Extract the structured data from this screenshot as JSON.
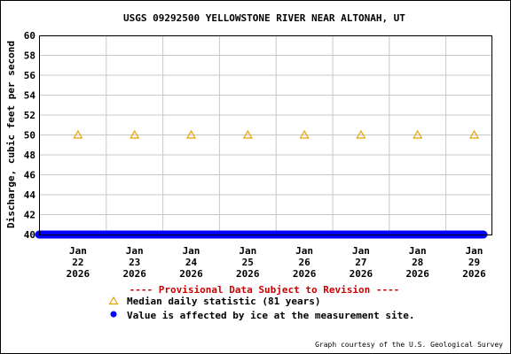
{
  "chart_data": {
    "type": "scatter",
    "title": "USGS 09292500 YELLOWSTONE RIVER NEAR ALTONAH, UT",
    "xlabel": "",
    "ylabel": "Discharge, cubic feet per second",
    "ylim": [
      40,
      60
    ],
    "y_ticks": [
      "40",
      "42",
      "44",
      "46",
      "48",
      "50",
      "52",
      "54",
      "56",
      "58",
      "60"
    ],
    "x_ticks": [
      {
        "month": "Jan",
        "day": "22",
        "year": "2026"
      },
      {
        "month": "Jan",
        "day": "23",
        "year": "2026"
      },
      {
        "month": "Jan",
        "day": "24",
        "year": "2026"
      },
      {
        "month": "Jan",
        "day": "25",
        "year": "2026"
      },
      {
        "month": "Jan",
        "day": "26",
        "year": "2026"
      },
      {
        "month": "Jan",
        "day": "27",
        "year": "2026"
      },
      {
        "month": "Jan",
        "day": "28",
        "year": "2026"
      },
      {
        "month": "Jan",
        "day": "29",
        "year": "2026"
      }
    ],
    "grid": true,
    "series": [
      {
        "name": "Median daily statistic (81 years)",
        "marker": "triangle",
        "color": "#e8a000",
        "x": [
          "2026-01-22",
          "2026-01-23",
          "2026-01-24",
          "2026-01-25",
          "2026-01-26",
          "2026-01-27",
          "2026-01-28",
          "2026-01-29"
        ],
        "values": [
          50,
          50,
          50,
          50,
          50,
          50,
          50,
          50
        ]
      },
      {
        "name": "Value is affected by ice at the measurement site.",
        "marker": "dot",
        "color": "#0000ff",
        "x_range": [
          "2026-01-21",
          "2026-01-29"
        ],
        "value": 40
      }
    ],
    "provisional_note": "---- Provisional Data Subject to Revision ----",
    "credit": "Graph courtesy of the U.S. Geological Survey"
  }
}
